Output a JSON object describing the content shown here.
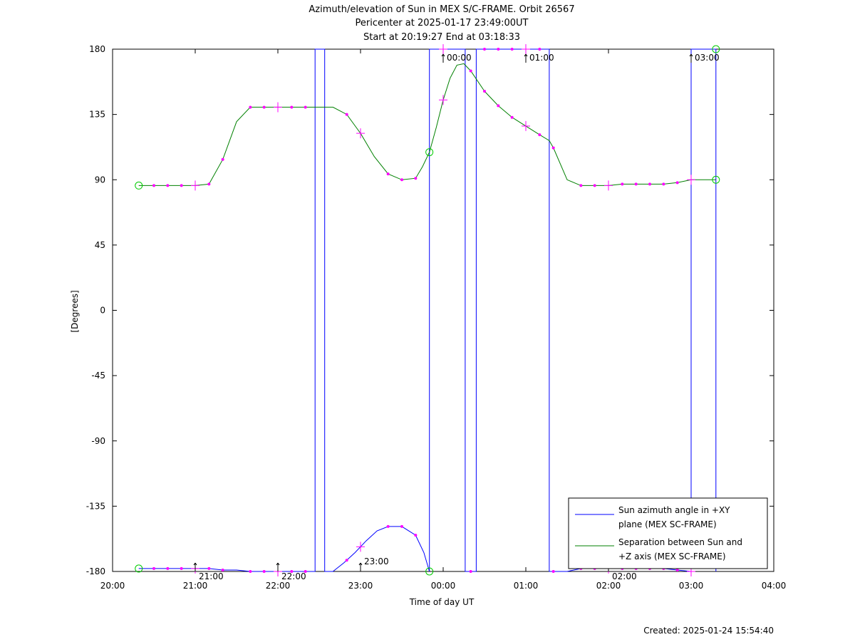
{
  "chart_data": {
    "type": "line",
    "title": [
      "Azimuth/elevation of Sun in MEX S/C-FRAME.  Orbit 26567",
      "Pericenter at 2025-01-17 23:49:00UT",
      "Start at 20:19:27 End at 03:18:33"
    ],
    "xlabel": "Time of day UT",
    "ylabel": "[Degrees]",
    "xlim": [
      "20:00",
      "04:00"
    ],
    "ylim": [
      -180,
      180
    ],
    "x_ticks": [
      "20:00",
      "21:00",
      "22:00",
      "23:00",
      "00:00",
      "01:00",
      "02:00",
      "03:00",
      "04:00"
    ],
    "y_ticks": [
      "180",
      "135",
      "90",
      "45",
      "0",
      "-45",
      "-90",
      "-135",
      "-180"
    ],
    "legend_position": "bottom-right",
    "series": [
      {
        "name": "Sun azimuth angle in +XY plane (MEX SC-FRAME)",
        "name_lines": [
          "Sun azimuth angle in +XY",
          "plane (MEX SC-FRAME)"
        ],
        "color": "#0000ff",
        "x": [
          "20:19",
          "20:30",
          "20:40",
          "20:50",
          "21:00",
          "21:10",
          "21:20",
          "21:30",
          "21:40",
          "21:50",
          "22:00",
          "22:10",
          "22:20",
          "22:27",
          "22:27",
          "22:34",
          "22:34",
          "22:40",
          "22:48",
          "22:56",
          "23:04",
          "23:12",
          "23:20",
          "23:30",
          "23:40",
          "23:46",
          "23:50",
          "23:50",
          "23:56",
          "24:00",
          "24:08",
          "24:16",
          "24:16",
          "24:24",
          "24:24",
          "24:32",
          "24:40",
          "24:50",
          "25:00",
          "25:10",
          "25:17",
          "25:17",
          "25:24",
          "25:30",
          "25:40",
          "25:50",
          "26:00",
          "26:10",
          "26:20",
          "26:30",
          "26:40",
          "26:50",
          "27:00",
          "27:00",
          "27:10",
          "27:18",
          "27:18"
        ],
        "y": [
          -178,
          -178,
          -178,
          -178,
          -178,
          -178,
          -179,
          -179,
          -180,
          -180,
          -180,
          -180,
          -180,
          -180,
          180,
          180,
          -180,
          -180,
          -174,
          -167,
          -159,
          -152,
          -149,
          -149,
          -155,
          -167,
          -180,
          180,
          180,
          180,
          180,
          180,
          -180,
          -180,
          180,
          180,
          180,
          180,
          180,
          180,
          180,
          -180,
          -180,
          -180,
          -178,
          -178,
          -178,
          -178,
          -178,
          -178,
          -178,
          -179,
          -180,
          180,
          180,
          180,
          -180
        ]
      },
      {
        "name": "Separation between Sun and +Z axis (MEX SC-FRAME)",
        "name_lines": [
          "Separation between Sun and",
          "+Z axis (MEX SC-FRAME)"
        ],
        "color": "#008000",
        "x": [
          "20:19",
          "20:30",
          "20:40",
          "20:50",
          "21:00",
          "21:10",
          "21:20",
          "21:30",
          "21:40",
          "21:50",
          "22:00",
          "22:10",
          "22:20",
          "22:30",
          "22:40",
          "22:50",
          "23:00",
          "23:10",
          "23:20",
          "23:30",
          "23:40",
          "23:45",
          "23:50",
          "23:55",
          "24:00",
          "24:05",
          "24:10",
          "24:15",
          "24:20",
          "24:30",
          "24:40",
          "24:50",
          "25:00",
          "25:10",
          "25:17",
          "25:20",
          "25:30",
          "25:40",
          "25:50",
          "26:00",
          "26:10",
          "26:20",
          "26:30",
          "26:40",
          "26:50",
          "27:00",
          "27:10",
          "27:18"
        ],
        "y": [
          86,
          86,
          86,
          86,
          86,
          87,
          104,
          130,
          140,
          140,
          140,
          140,
          140,
          140,
          140,
          135,
          122,
          106,
          94,
          90,
          91,
          99,
          109,
          126,
          145,
          160,
          169,
          170,
          165,
          151,
          141,
          133,
          127,
          121,
          117,
          112,
          90,
          86,
          86,
          86,
          87,
          87,
          87,
          87,
          88,
          90,
          90,
          90
        ]
      }
    ],
    "markers": {
      "color": "#ff00ff",
      "dot_x": [
        "20:30",
        "20:40",
        "20:50",
        "21:10",
        "21:20",
        "21:40",
        "21:50",
        "22:10",
        "22:20",
        "22:50",
        "23:20",
        "23:30",
        "23:40",
        "24:20",
        "24:30",
        "24:40",
        "24:50",
        "25:10",
        "25:20",
        "25:40",
        "25:50",
        "26:10",
        "26:20",
        "26:30",
        "26:40",
        "26:50"
      ],
      "cross_x": [
        "21:00",
        "22:00",
        "23:00",
        "24:00",
        "25:00",
        "26:00",
        "27:00"
      ],
      "start_end_circles": [
        "20:19",
        "23:50",
        "27:18"
      ]
    },
    "annotations": [
      {
        "label": "21:00",
        "x": "21:00",
        "at": "bottom"
      },
      {
        "label": "22:00",
        "x": "22:00",
        "at": "bottom"
      },
      {
        "label": "23:00",
        "x": "23:00",
        "at": "bottom"
      },
      {
        "label": "00:00",
        "x": "24:00",
        "at": "top"
      },
      {
        "label": "01:00",
        "x": "25:00",
        "at": "top"
      },
      {
        "label": "02:00",
        "x": "26:00",
        "at": "bottom"
      },
      {
        "label": "03:00",
        "x": "27:00",
        "at": "top"
      }
    ],
    "created": "Created: 2025-01-24 15:54:40"
  }
}
